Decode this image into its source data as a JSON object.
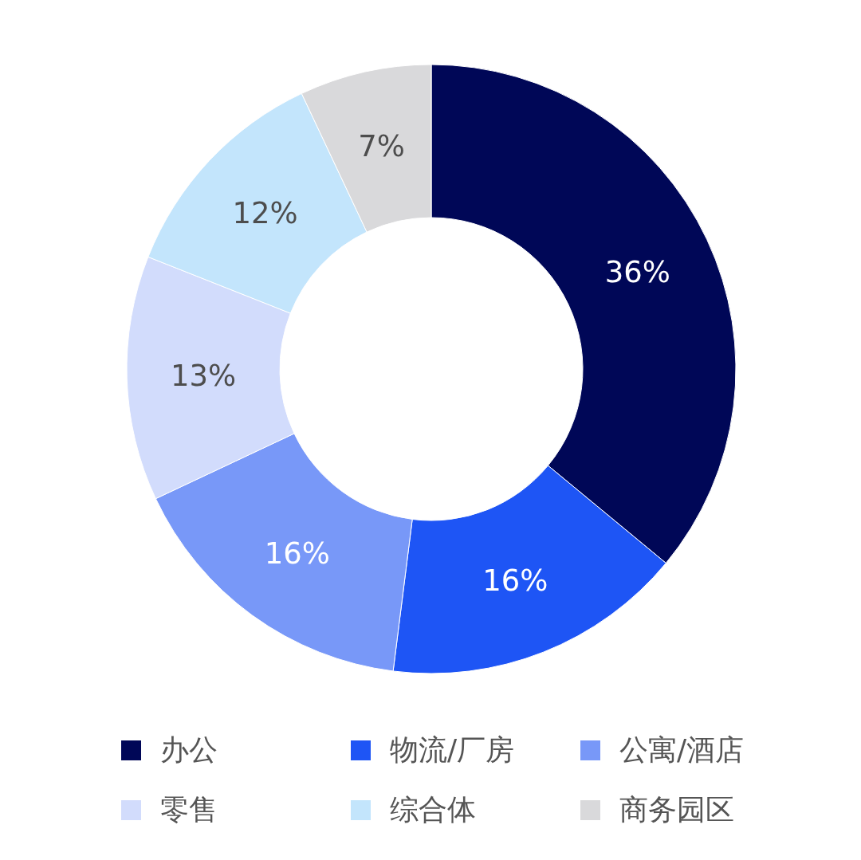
{
  "chart_data": {
    "type": "donut",
    "categories": [
      "办公",
      "物流/厂房",
      "公寓/酒店",
      "零售",
      "综合体",
      "商务园区"
    ],
    "values": [
      36,
      16,
      16,
      13,
      12,
      7
    ],
    "value_labels": [
      "36%",
      "16%",
      "16%",
      "13%",
      "12%",
      "7%"
    ],
    "colors": [
      "#000757",
      "#1e55f5",
      "#7898f8",
      "#d2dcfc",
      "#c3e5fc",
      "#d9d9db"
    ],
    "legend": "bottom"
  }
}
